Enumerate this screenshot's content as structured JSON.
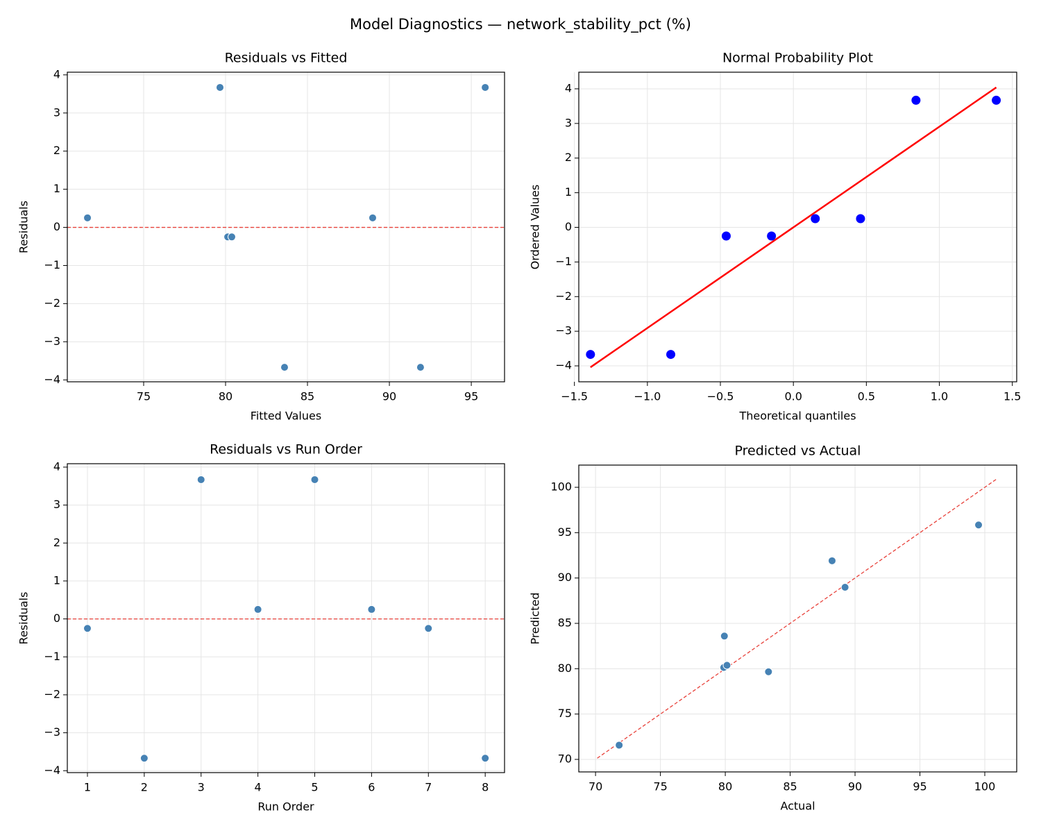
{
  "title": "Model Diagnostics — network_stability_pct (%)",
  "chart_data": [
    {
      "type": "scatter",
      "title": "Residuals vs Fitted",
      "xlabel": "Fitted Values",
      "ylabel": "Residuals",
      "x": [
        71.57,
        79.66,
        80.13,
        80.38,
        83.6,
        88.98,
        91.9,
        95.85
      ],
      "values": [
        0.25,
        3.67,
        -0.25,
        -0.25,
        -3.67,
        0.25,
        -3.67,
        3.67
      ],
      "color": "#4682b4",
      "reference_line": {
        "y": 0,
        "color": "#e8413a"
      },
      "xlim": [
        70.34,
        97.03
      ],
      "ylim": [
        -4.05,
        4.07
      ],
      "xticks": [
        75,
        80,
        85,
        90,
        95
      ],
      "yticks": [
        {
          "value": -4,
          "label": "−4"
        },
        {
          "value": -3,
          "label": "−3"
        },
        {
          "value": -2,
          "label": "−2"
        },
        {
          "value": -1,
          "label": "−1"
        },
        0,
        1,
        2,
        3,
        4
      ],
      "grid": true
    },
    {
      "type": "qq",
      "title": "Normal Probability Plot",
      "xlabel": "Theoretical quantiles",
      "ylabel": "Ordered Values",
      "x": [
        -1.39,
        -0.84,
        -0.46,
        -0.15,
        0.15,
        0.46,
        0.84,
        1.39
      ],
      "values": [
        -3.67,
        -3.67,
        -0.25,
        -0.25,
        0.25,
        0.25,
        3.67,
        3.67
      ],
      "color": "#0000ff",
      "fit_line": {
        "x": [
          -1.39,
          1.39
        ],
        "values": [
          -4.04,
          4.04
        ],
        "color": "#ff0000"
      },
      "xlim": [
        -1.47,
        1.53
      ],
      "ylim": [
        -4.46,
        4.48
      ],
      "xticks": [
        {
          "value": -1.5,
          "label": "−1.5"
        },
        {
          "value": -1,
          "label": "−1.0"
        },
        {
          "value": -0.5,
          "label": "−0.5"
        },
        {
          "value": 0,
          "label": "0.0"
        },
        0.5,
        {
          "value": 1,
          "label": "1.0"
        },
        1.5
      ],
      "yticks": [
        {
          "value": -4,
          "label": "−4"
        },
        {
          "value": -3,
          "label": "−3"
        },
        {
          "value": -2,
          "label": "−2"
        },
        {
          "value": -1,
          "label": "−1"
        },
        0,
        1,
        2,
        3,
        4
      ],
      "grid": true
    },
    {
      "type": "scatter",
      "title": "Residuals vs Run Order",
      "xlabel": "Run Order",
      "ylabel": "Residuals",
      "x": [
        1,
        2,
        3,
        4,
        5,
        6,
        7,
        8
      ],
      "values": [
        -0.25,
        -3.67,
        3.67,
        0.25,
        3.67,
        0.25,
        -0.25,
        -3.67
      ],
      "color": "#4682b4",
      "reference_line": {
        "y": 0,
        "color": "#e8413a"
      },
      "xlim": [
        0.646,
        8.34
      ],
      "ylim": [
        -4.05,
        4.09
      ],
      "xticks": [
        1,
        2,
        3,
        4,
        5,
        6,
        7,
        8
      ],
      "yticks": [
        {
          "value": -4,
          "label": "−4"
        },
        {
          "value": -3,
          "label": "−3"
        },
        {
          "value": -2,
          "label": "−2"
        },
        {
          "value": -1,
          "label": "−1"
        },
        0,
        1,
        2,
        3,
        4
      ],
      "grid": true
    },
    {
      "type": "scatter",
      "title": "Predicted vs Actual",
      "xlabel": "Actual",
      "ylabel": "Predicted",
      "x": [
        71.82,
        83.33,
        79.88,
        80.13,
        79.93,
        89.23,
        88.23,
        99.52
      ],
      "values": [
        71.57,
        79.66,
        80.13,
        80.38,
        83.6,
        88.98,
        91.9,
        95.85
      ],
      "color": "#4682b4",
      "identity_line": {
        "x": [
          70.13,
          100.92
        ],
        "values": [
          70.13,
          100.92
        ],
        "color": "#e8413a"
      },
      "xlim": [
        68.71,
        102.46
      ],
      "ylim": [
        68.62,
        102.45
      ],
      "xticks": [
        70,
        75,
        80,
        85,
        90,
        95,
        100
      ],
      "yticks": [
        70,
        75,
        80,
        85,
        90,
        95,
        100
      ],
      "grid": true
    }
  ]
}
